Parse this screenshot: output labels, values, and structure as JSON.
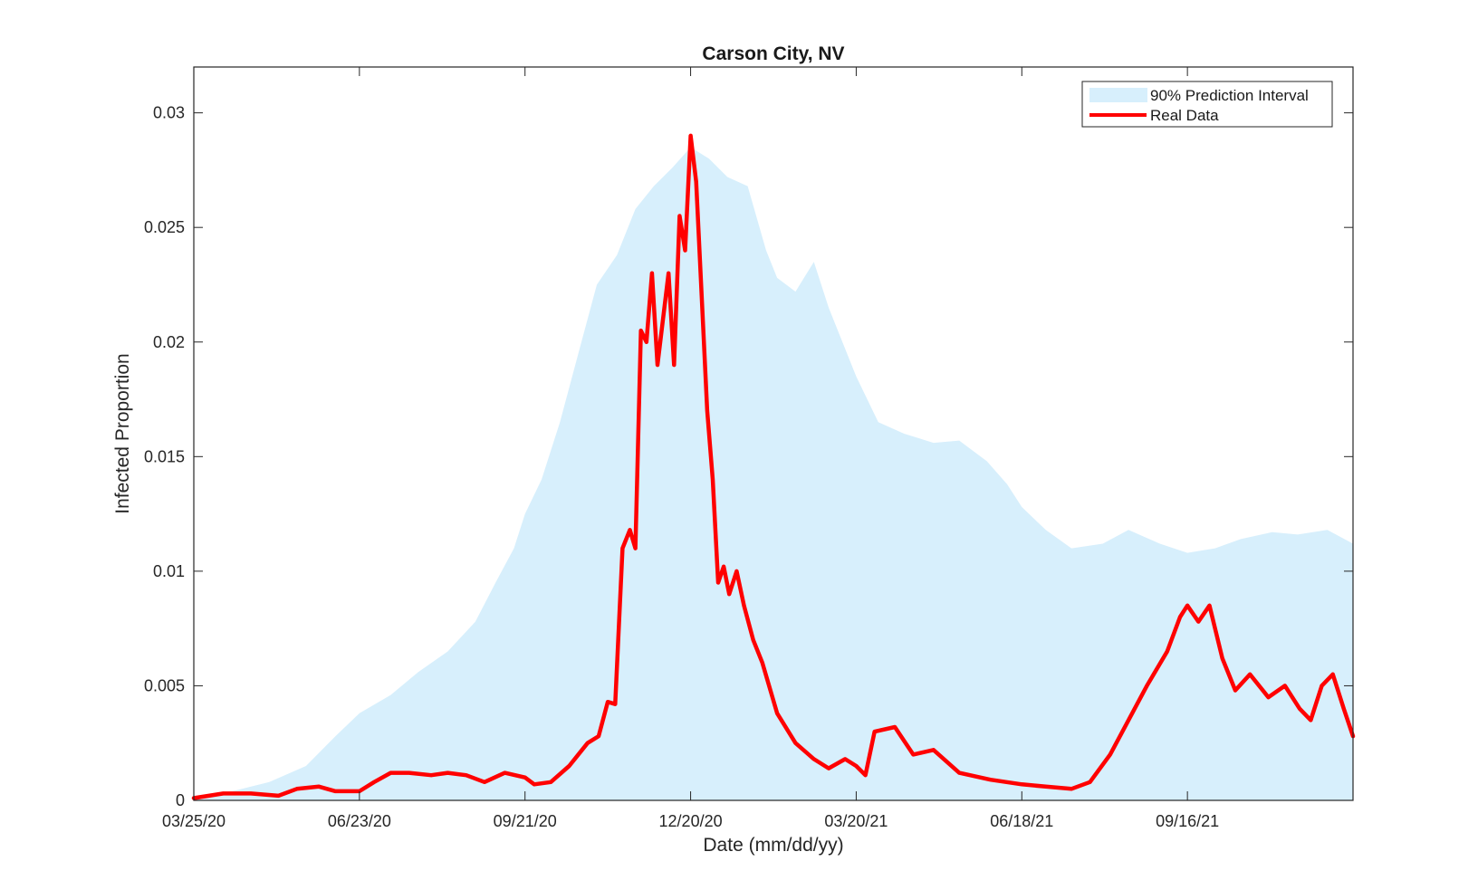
{
  "chart_data": {
    "type": "area",
    "title": "Carson City, NV",
    "xlabel": "Date (mm/dd/yy)",
    "ylabel": "Infected Proportion",
    "xlim": [
      "03/25/20",
      "12/15/21"
    ],
    "ylim": [
      0,
      0.032
    ],
    "x_ticks": [
      "03/25/20",
      "06/23/20",
      "09/21/20",
      "12/20/20",
      "03/20/21",
      "06/18/21",
      "09/16/21"
    ],
    "y_ticks": [
      0,
      0.005,
      0.01,
      0.015,
      0.02,
      0.025,
      0.03
    ],
    "y_tick_labels": [
      "0",
      "0.005",
      "0.01",
      "0.015",
      "0.02",
      "0.025",
      "0.03"
    ],
    "grid": false,
    "legend_position": "top-right",
    "series": [
      {
        "name": "90% Prediction Interval",
        "kind": "band",
        "color": "#d7effc",
        "x": [
          "03/25/20",
          "04/15/20",
          "05/05/20",
          "05/25/20",
          "06/10/20",
          "06/23/20",
          "07/10/20",
          "07/25/20",
          "08/10/20",
          "08/25/20",
          "09/05/20",
          "09/15/20",
          "09/21/20",
          "09/30/20",
          "10/10/20",
          "10/20/20",
          "10/30/20",
          "11/10/20",
          "11/20/20",
          "11/30/20",
          "12/10/20",
          "12/20/20",
          "12/30/20",
          "01/09/21",
          "01/20/21",
          "01/30/21",
          "02/05/21",
          "02/15/21",
          "02/25/21",
          "03/05/21",
          "03/20/21",
          "04/01/21",
          "04/15/21",
          "05/01/21",
          "05/15/21",
          "05/30/21",
          "06/10/21",
          "06/18/21",
          "07/01/21",
          "07/15/21",
          "08/01/21",
          "08/15/21",
          "09/01/21",
          "09/16/21",
          "10/01/21",
          "10/15/21",
          "11/01/21",
          "11/15/21",
          "12/01/21",
          "12/15/21"
        ],
        "upper": [
          0.0002,
          0.0004,
          0.0008,
          0.0015,
          0.0028,
          0.0038,
          0.0046,
          0.0056,
          0.0065,
          0.0078,
          0.0095,
          0.011,
          0.0125,
          0.014,
          0.0165,
          0.0195,
          0.0225,
          0.0238,
          0.0258,
          0.0268,
          0.0276,
          0.0285,
          0.028,
          0.0272,
          0.0268,
          0.024,
          0.0228,
          0.0222,
          0.0235,
          0.0215,
          0.0185,
          0.0165,
          0.016,
          0.0156,
          0.0157,
          0.0148,
          0.0138,
          0.0128,
          0.0118,
          0.011,
          0.0112,
          0.0118,
          0.0112,
          0.0108,
          0.011,
          0.0114,
          0.0117,
          0.0116,
          0.0118,
          0.0112
        ],
        "lower": [
          0,
          0,
          0,
          0,
          0,
          0,
          0,
          0,
          0,
          0,
          0,
          0,
          0,
          0,
          0,
          0,
          0,
          0,
          0,
          0,
          0,
          0,
          0,
          0,
          0,
          0,
          0,
          0,
          0,
          0,
          0,
          0,
          0,
          0,
          0,
          0,
          0,
          0,
          0,
          0,
          0,
          0,
          0,
          0,
          0,
          0,
          0,
          0,
          0,
          0
        ]
      },
      {
        "name": "Real Data",
        "kind": "line",
        "color": "#ff0000",
        "x": [
          "03/25/20",
          "04/10/20",
          "04/25/20",
          "05/10/20",
          "05/20/20",
          "06/01/20",
          "06/10/20",
          "06/23/20",
          "07/01/20",
          "07/10/20",
          "07/20/20",
          "08/01/20",
          "08/10/20",
          "08/20/20",
          "08/30/20",
          "09/10/20",
          "09/21/20",
          "09/26/20",
          "10/05/20",
          "10/15/20",
          "10/25/20",
          "10/31/20",
          "11/05/20",
          "11/09/20",
          "11/13/20",
          "11/17/20",
          "11/20/20",
          "11/23/20",
          "11/26/20",
          "11/29/20",
          "12/02/20",
          "12/05/20",
          "12/08/20",
          "12/11/20",
          "12/14/20",
          "12/17/20",
          "12/20/20",
          "12/23/20",
          "12/26/20",
          "12/29/20",
          "01/01/21",
          "01/04/21",
          "01/07/21",
          "01/10/21",
          "01/14/21",
          "01/18/21",
          "01/23/21",
          "01/28/21",
          "02/05/21",
          "02/15/21",
          "02/25/21",
          "03/05/21",
          "03/14/21",
          "03/20/21",
          "03/25/21",
          "03/30/21",
          "04/10/21",
          "04/20/21",
          "05/01/21",
          "05/15/21",
          "06/01/21",
          "06/18/21",
          "07/01/21",
          "07/15/21",
          "07/25/21",
          "08/05/21",
          "08/15/21",
          "08/25/21",
          "09/05/21",
          "09/12/21",
          "09/16/21",
          "09/22/21",
          "09/28/21",
          "10/05/21",
          "10/12/21",
          "10/20/21",
          "10/30/21",
          "11/08/21",
          "11/16/21",
          "11/22/21",
          "11/28/21",
          "12/04/21",
          "12/10/21",
          "12/15/21"
        ],
        "y": [
          0.0001,
          0.0003,
          0.0003,
          0.0002,
          0.0005,
          0.0006,
          0.0004,
          0.0004,
          0.0008,
          0.0012,
          0.0012,
          0.0011,
          0.0012,
          0.0011,
          0.0008,
          0.0012,
          0.001,
          0.0007,
          0.0008,
          0.0015,
          0.0025,
          0.0028,
          0.0043,
          0.0042,
          0.011,
          0.0118,
          0.011,
          0.0205,
          0.02,
          0.023,
          0.019,
          0.021,
          0.023,
          0.019,
          0.0255,
          0.024,
          0.029,
          0.027,
          0.022,
          0.017,
          0.014,
          0.0095,
          0.0102,
          0.009,
          0.01,
          0.0085,
          0.007,
          0.006,
          0.0038,
          0.0025,
          0.0018,
          0.0014,
          0.0018,
          0.0015,
          0.0011,
          0.003,
          0.0032,
          0.002,
          0.0022,
          0.0012,
          0.0009,
          0.0007,
          0.0006,
          0.0005,
          0.0008,
          0.002,
          0.0035,
          0.005,
          0.0065,
          0.008,
          0.0085,
          0.0078,
          0.0085,
          0.0062,
          0.0048,
          0.0055,
          0.0045,
          0.005,
          0.004,
          0.0035,
          0.005,
          0.0055,
          0.004,
          0.0028
        ]
      }
    ]
  }
}
